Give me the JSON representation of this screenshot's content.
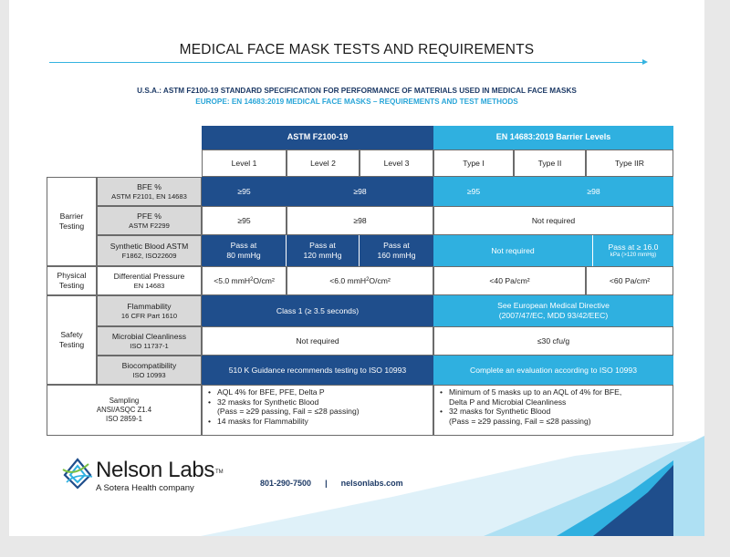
{
  "document": {
    "title": "MEDICAL FACE MASK TESTS AND REQUIREMENTS",
    "subtitle_us": "U.S.A.: ASTM F2100-19 STANDARD SPECIFICATION FOR PERFORMANCE OF MATERIALS USED IN MEDICAL FACE MASKS",
    "subtitle_eu": "EUROPE: EN 14683:2019 MEDICAL FACE MASKS – REQUIREMENTS AND TEST METHODS"
  },
  "table": {
    "astm_header": "ASTM F2100-19",
    "en_header": "EN 14683:2019 Barrier Levels",
    "levels": [
      "Level 1",
      "Level 2",
      "Level 3",
      "Type I",
      "Type II",
      "Type IIR"
    ],
    "groups": {
      "barrier": "Barrier Testing",
      "physical": "Physical Testing",
      "safety": "Safety Testing"
    },
    "rows": {
      "bfe": {
        "label": "BFE %",
        "std": "ASTM F2101, EN 14683",
        "l1": "≥95",
        "l23": "≥98",
        "t1": "≥95",
        "t2": "≥98"
      },
      "pfe": {
        "label": "PFE %",
        "std": "ASTM F2299",
        "l1": "≥95",
        "l23": "≥98",
        "en": "Not required"
      },
      "synthetic": {
        "label": "Synthetic Blood ASTM",
        "std": "F1862, ISO22609",
        "l1_a": "Pass at",
        "l1_b": "80 mmHg",
        "l2_a": "Pass at",
        "l2_b": "120 mmHg",
        "l3_a": "Pass at",
        "l3_b": "160 mmHg",
        "t12": "Not required",
        "t3_a": "Pass at  ≥ 16.0",
        "t3_b": "kPa (>120 mmHg)"
      },
      "diff": {
        "label": "Differential Pressure",
        "std": "EN 14683",
        "l1_pre": "<5.0 mmH",
        "l1_sub": "2",
        "l1_post": "O/cm²",
        "l23_pre": "<6.0 mmH",
        "l23_sub": "2",
        "l23_post": "O/cm²",
        "t12": "<40 Pa/cm²",
        "t3": "<60 Pa/cm²"
      },
      "flam": {
        "label": "Flammability",
        "std": "16 CFR Part 1610",
        "astm": "Class 1 (≥ 3.5 seconds)",
        "en_a": "See European Medical Directive",
        "en_b": "(2007/47/EC, MDD 93/42/EEC)"
      },
      "micro": {
        "label": "Microbial Cleanliness",
        "std": "ISO 11737-1",
        "astm": "Not required",
        "en": "≤30 cfu/g"
      },
      "bio": {
        "label": "Biocompatibility",
        "std": "ISO 10993",
        "astm": "510 K Guidance recommends testing to ISO 10993",
        "en": "Complete an evaluation according to ISO 10993"
      },
      "sampling": {
        "label": "Sampling",
        "std1": "ANSI/ASQC Z1.4",
        "std2": "ISO 2859-1",
        "astm_b1": "AQL 4% for BFE, PFE, Delta P",
        "astm_b2": "32 masks for Synthetic Blood",
        "astm_b2c": "(Pass = ≥29 passing, Fail = ≤28 passing)",
        "astm_b3": "14 masks for Flammability",
        "en_b1": "Minimum of 5 masks up to an AQL of 4% for BFE,",
        "en_b1c": "Delta P and Microbial Cleanliness",
        "en_b2": "32 masks for Synthetic Blood",
        "en_b2c": "(Pass = ≥29 passing, Fail = ≤28 passing)"
      }
    }
  },
  "footer": {
    "logo_name": "Nelson Labs",
    "logo_tm": "TM",
    "logo_sub": "A Sotera Health company",
    "phone": "801-290-7500",
    "separator": "|",
    "website": "nelsonlabs.com"
  },
  "colors": {
    "dark_blue": "#1f4e8c",
    "cyan": "#2fb0e0",
    "gray": "#d9d9d9"
  }
}
